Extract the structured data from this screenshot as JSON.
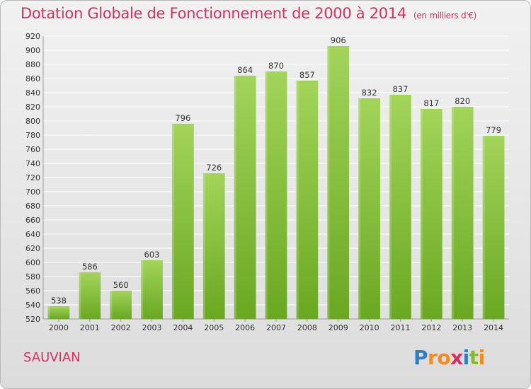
{
  "title": "Dotation Globale de Fonctionnement de 2000 à 2014",
  "subtitle": "(en milliers d'€)",
  "place": "SAUVIAN",
  "logo": {
    "letters": [
      "P",
      "r",
      "o",
      "x",
      "i",
      "t",
      "i"
    ],
    "colors": [
      "#2f7fc8",
      "#f08c1e",
      "#f08c1e",
      "#d4305f",
      "#2f7fc8",
      "#86b82c",
      "#f08c1e"
    ]
  },
  "colors": {
    "accent": "#d4305f",
    "bar_top": "#a2d45a",
    "bar_bottom": "#6aa821",
    "grid": "#ffffff"
  },
  "chart_data": {
    "type": "bar",
    "categories": [
      "2000",
      "2001",
      "2002",
      "2003",
      "2004",
      "2005",
      "2006",
      "2007",
      "2008",
      "2009",
      "2010",
      "2011",
      "2012",
      "2013",
      "2014"
    ],
    "values": [
      538,
      586,
      560,
      603,
      796,
      726,
      864,
      870,
      857,
      906,
      832,
      837,
      817,
      820,
      779
    ],
    "ylim": [
      520,
      920
    ],
    "yticks": [
      520,
      540,
      560,
      580,
      600,
      620,
      640,
      660,
      680,
      700,
      720,
      740,
      760,
      780,
      800,
      820,
      840,
      860,
      880,
      900,
      920
    ],
    "grid": true,
    "data_labels": true
  }
}
